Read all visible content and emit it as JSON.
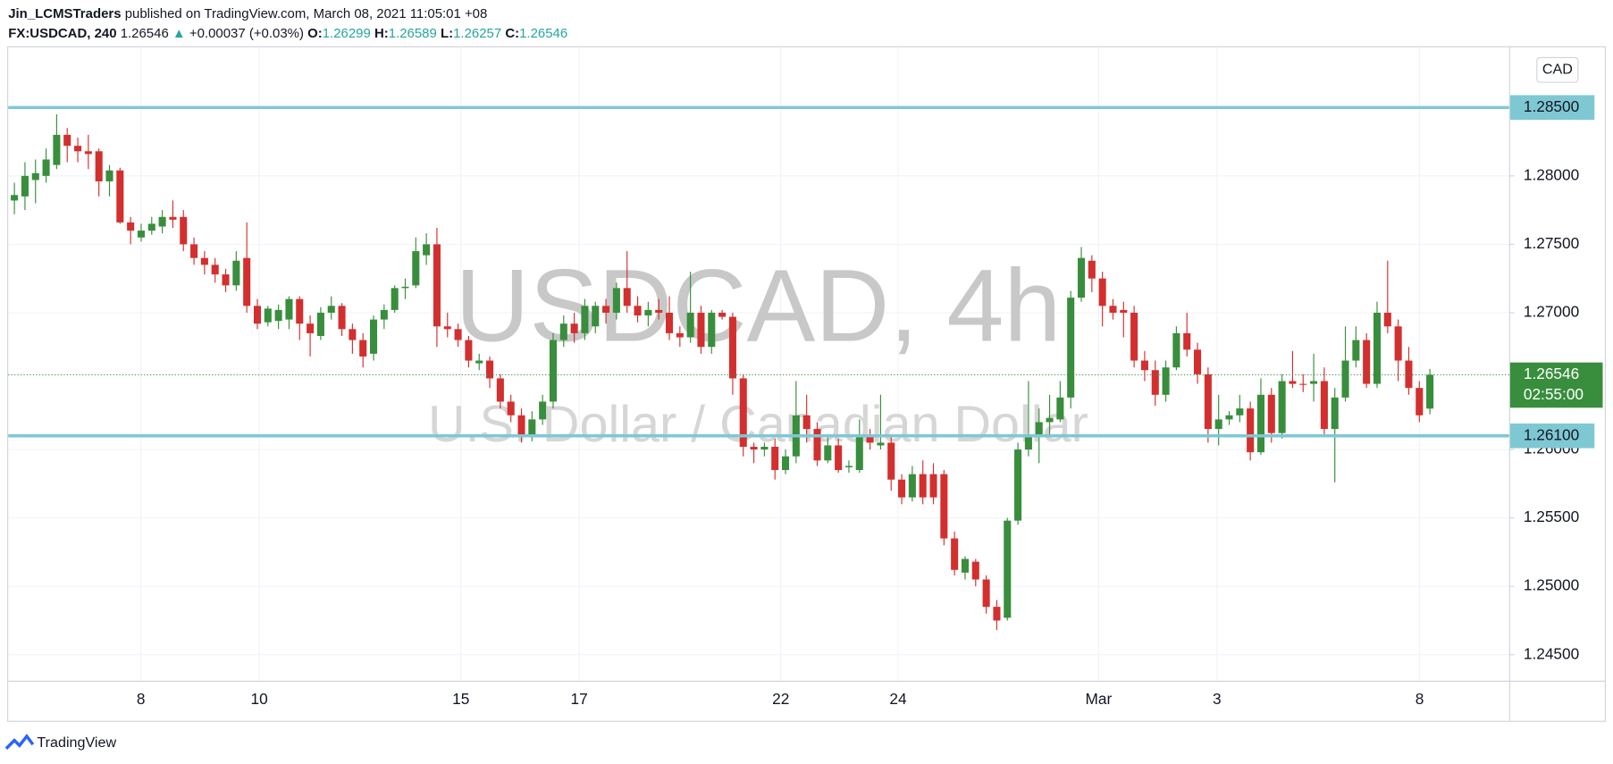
{
  "header": {
    "author": "Jin_LCMSTraders",
    "published": "published on TradingView.com, March 08, 2021 11:05:01 +08",
    "symbol": "FX:USDCAD, 240",
    "last": "1.26546",
    "arrow": "▲",
    "change": "+0.00037 (+0.03%)",
    "ohlc": [
      {
        "key": "O:",
        "value": "1.26299"
      },
      {
        "key": "H:",
        "value": "1.26589"
      },
      {
        "key": "L:",
        "value": "1.26257"
      },
      {
        "key": "C:",
        "value": "1.26546"
      }
    ]
  },
  "chart_data": {
    "type": "candlestick",
    "watermark": "USDCAD, 4h",
    "watermark_sub": "U.S. Dollar / Canadian Dollar",
    "currency": "CAD",
    "x_labels": [
      "8",
      "10",
      "15",
      "17",
      "22",
      "24",
      "Mar",
      "3",
      "8"
    ],
    "ylim": [
      1.2431,
      1.2894
    ],
    "yticks": [
      {
        "value": 1.28,
        "label": "1.28000"
      },
      {
        "value": 1.275,
        "label": "1.27500"
      },
      {
        "value": 1.27,
        "label": "1.27000"
      },
      {
        "value": 1.26,
        "label": "1.26000"
      },
      {
        "value": 1.255,
        "label": "1.25500"
      },
      {
        "value": 1.25,
        "label": "1.25000"
      },
      {
        "value": 1.245,
        "label": "1.24500"
      }
    ],
    "grid": true,
    "levels": [
      {
        "value": 1.285,
        "label": "1.28500"
      },
      {
        "value": 1.261,
        "label": "1.26100"
      }
    ],
    "last_price": {
      "value": 1.26546,
      "label": "1.26546"
    },
    "countdown": "02:55:00",
    "colors": {
      "up": "#388e3c",
      "down": "#d32f2f",
      "level": "#7ec8d4"
    },
    "open": [
      1.2782,
      1.2785,
      1.2797,
      1.28,
      1.2808,
      1.283,
      1.2822,
      1.2818,
      1.2818,
      1.2796,
      1.2804,
      1.2766,
      1.2755,
      1.276,
      1.2763,
      1.277,
      1.277,
      1.275,
      1.274,
      1.2735,
      1.2728,
      1.272,
      1.274,
      1.2705,
      1.2693,
      1.2694,
      1.2695,
      1.271,
      1.2692,
      1.2683,
      1.27,
      1.2705,
      1.2688,
      1.268,
      1.267,
      1.2695,
      1.2702,
      1.2718,
      1.272,
      1.2742,
      1.275,
      1.269,
      1.2688,
      1.268,
      1.2663,
      1.2665,
      1.2652,
      1.2635,
      1.2625,
      1.261,
      1.2622,
      1.2635,
      1.268,
      1.2692,
      1.2685,
      1.269,
      1.2705,
      1.27,
      1.2718,
      1.2705,
      1.2698,
      1.2702,
      1.27,
      1.2685,
      1.2682,
      1.27,
      1.2675,
      1.27,
      1.2697,
      1.2652,
      1.2602,
      1.26,
      1.2602,
      1.2585,
      1.2595,
      1.2625,
      1.2615,
      1.2592,
      1.2603,
      1.2587,
      1.2585,
      1.261,
      1.2603,
      1.2605,
      1.2578,
      1.2565,
      1.2582,
      1.2582,
      1.2582,
      1.2535,
      1.251,
      1.2518,
      1.2505,
      1.2485,
      1.2477,
      1.2548,
      1.26,
      1.261,
      1.262,
      1.2622,
      1.2638,
      1.2711,
      1.2738,
      1.2725,
      1.2705,
      1.2702,
      1.27,
      1.2665,
      1.2658,
      1.264,
      1.266,
      1.2685,
      1.2673,
      1.2655,
      1.2615,
      1.2622,
      1.2625,
      1.263,
      1.2598,
      1.264,
      1.2612,
      1.265,
      1.2648,
      1.2648,
      1.265,
      1.2615,
      1.2638,
      1.2665,
      1.268,
      1.2648,
      1.27,
      1.269,
      1.2665,
      1.2645,
      1.26299
    ],
    "high": [
      1.2795,
      1.281,
      1.2812,
      1.282,
      1.2845,
      1.2835,
      1.2828,
      1.283,
      1.282,
      1.2808,
      1.2806,
      1.277,
      1.2765,
      1.277,
      1.2775,
      1.2782,
      1.2775,
      1.2755,
      1.2745,
      1.274,
      1.2732,
      1.2745,
      1.2766,
      1.271,
      1.2705,
      1.2706,
      1.2712,
      1.2712,
      1.2698,
      1.2704,
      1.2712,
      1.2707,
      1.2692,
      1.2685,
      1.2698,
      1.2706,
      1.272,
      1.2725,
      1.2755,
      1.2758,
      1.2762,
      1.27,
      1.2692,
      1.2683,
      1.267,
      1.2668,
      1.2655,
      1.264,
      1.263,
      1.2628,
      1.264,
      1.2685,
      1.2698,
      1.27,
      1.271,
      1.2708,
      1.271,
      1.2722,
      1.2745,
      1.2712,
      1.2708,
      1.271,
      1.2712,
      1.269,
      1.273,
      1.2705,
      1.2702,
      1.2702,
      1.27,
      1.2655,
      1.2605,
      1.2605,
      1.2608,
      1.26,
      1.265,
      1.264,
      1.262,
      1.261,
      1.2608,
      1.2592,
      1.2622,
      1.2615,
      1.264,
      1.261,
      1.2582,
      1.2588,
      1.2592,
      1.259,
      1.2585,
      1.254,
      1.2522,
      1.252,
      1.2508,
      1.249,
      1.255,
      1.2605,
      1.265,
      1.263,
      1.264,
      1.265,
      1.2716,
      1.2748,
      1.2742,
      1.273,
      1.271,
      1.2708,
      1.2705,
      1.2672,
      1.2665,
      1.2665,
      1.269,
      1.27,
      1.2678,
      1.266,
      1.264,
      1.2628,
      1.264,
      1.2635,
      1.2652,
      1.2645,
      1.2655,
      1.2672,
      1.2655,
      1.267,
      1.266,
      1.2645,
      1.269,
      1.269,
      1.2685,
      1.2708,
      1.2738,
      1.2695,
      1.2675,
      1.265,
      1.26589
    ],
    "low": [
      1.2772,
      1.2775,
      1.278,
      1.2795,
      1.2805,
      1.281,
      1.281,
      1.2805,
      1.2785,
      1.2785,
      1.2765,
      1.275,
      1.2752,
      1.2757,
      1.2758,
      1.2762,
      1.2745,
      1.2735,
      1.2728,
      1.2722,
      1.2715,
      1.2716,
      1.27,
      1.2688,
      1.269,
      1.2688,
      1.2688,
      1.268,
      1.2668,
      1.268,
      1.2695,
      1.2683,
      1.267,
      1.266,
      1.2665,
      1.2688,
      1.27,
      1.271,
      1.2718,
      1.2735,
      1.2675,
      1.2682,
      1.2675,
      1.266,
      1.2658,
      1.2645,
      1.263,
      1.262,
      1.2605,
      1.2606,
      1.2618,
      1.263,
      1.2675,
      1.2678,
      1.268,
      1.2685,
      1.2692,
      1.2695,
      1.27,
      1.2693,
      1.269,
      1.2695,
      1.268,
      1.2675,
      1.2678,
      1.267,
      1.267,
      1.2695,
      1.264,
      1.2595,
      1.259,
      1.2595,
      1.2578,
      1.2582,
      1.259,
      1.2605,
      1.2588,
      1.259,
      1.2583,
      1.2583,
      1.2583,
      1.26,
      1.26,
      1.257,
      1.256,
      1.2562,
      1.256,
      1.256,
      1.253,
      1.2508,
      1.2505,
      1.25,
      1.248,
      1.2468,
      1.2475,
      1.2545,
      1.2595,
      1.259,
      1.261,
      1.262,
      1.263,
      1.2708,
      1.2715,
      1.269,
      1.2695,
      1.2682,
      1.266,
      1.265,
      1.2632,
      1.2635,
      1.2658,
      1.2668,
      1.2648,
      1.2605,
      1.2603,
      1.2618,
      1.262,
      1.2592,
      1.2596,
      1.2605,
      1.2608,
      1.2645,
      1.2642,
      1.2635,
      1.261,
      1.2576,
      1.2635,
      1.266,
      1.2645,
      1.2645,
      1.2685,
      1.265,
      1.264,
      1.262,
      1.26257
    ],
    "close": [
      1.2786,
      1.28,
      1.2802,
      1.2812,
      1.283,
      1.2822,
      1.2818,
      1.2816,
      1.2796,
      1.2804,
      1.2766,
      1.276,
      1.276,
      1.2765,
      1.277,
      1.2768,
      1.275,
      1.274,
      1.2735,
      1.2728,
      1.272,
      1.2738,
      1.2705,
      1.2692,
      1.2703,
      1.2702,
      1.271,
      1.2692,
      1.2685,
      1.27,
      1.2705,
      1.2688,
      1.268,
      1.2668,
      1.2695,
      1.2702,
      1.2718,
      1.2719,
      1.2745,
      1.275,
      1.269,
      1.2688,
      1.268,
      1.2665,
      1.2665,
      1.2652,
      1.2635,
      1.2625,
      1.261,
      1.2622,
      1.2635,
      1.268,
      1.2692,
      1.2685,
      1.2705,
      1.2705,
      1.27,
      1.2718,
      1.2705,
      1.2698,
      1.2702,
      1.27,
      1.2685,
      1.2682,
      1.27,
      1.2675,
      1.27,
      1.2697,
      1.2652,
      1.2602,
      1.26,
      1.2602,
      1.2585,
      1.2595,
      1.2625,
      1.2615,
      1.2592,
      1.2603,
      1.2585,
      1.2588,
      1.261,
      1.2605,
      1.2605,
      1.2578,
      1.2565,
      1.2582,
      1.2565,
      1.2565,
      1.2535,
      1.2512,
      1.252,
      1.2505,
      1.2485,
      1.2475,
      1.2548,
      1.26,
      1.261,
      1.262,
      1.2623,
      1.2638,
      1.2711,
      1.274,
      1.2725,
      1.2705,
      1.27,
      1.27,
      1.2665,
      1.2658,
      1.264,
      1.266,
      1.2685,
      1.2673,
      1.2655,
      1.2615,
      1.2622,
      1.2625,
      1.263,
      1.2598,
      1.264,
      1.2612,
      1.265,
      1.2648,
      1.2648,
      1.265,
      1.2615,
      1.2638,
      1.2665,
      1.268,
      1.2648,
      1.27,
      1.269,
      1.2665,
      1.2645,
      1.2625,
      1.26546
    ]
  },
  "footer": "TradingView"
}
